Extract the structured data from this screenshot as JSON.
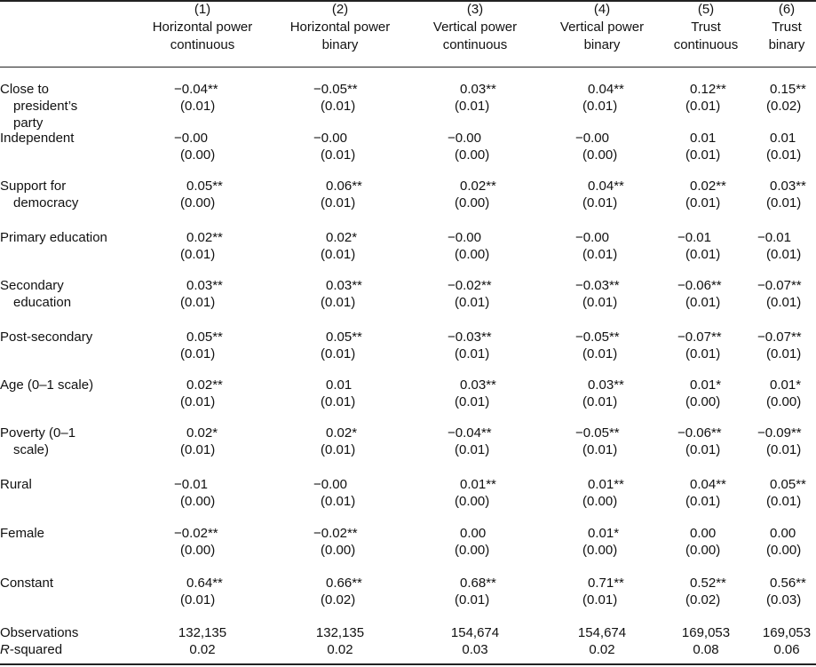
{
  "columns": [
    {
      "num": "(1)",
      "line1": "Horizontal power",
      "line2": "continuous"
    },
    {
      "num": "(2)",
      "line1": "Horizontal power",
      "line2": "binary"
    },
    {
      "num": "(3)",
      "line1": "Vertical power",
      "line2": "continuous"
    },
    {
      "num": "(4)",
      "line1": "Vertical power",
      "line2": "binary"
    },
    {
      "num": "(5)",
      "line1": "Trust",
      "line2": "continuous"
    },
    {
      "num": "(6)",
      "line1": "Trust",
      "line2": "binary"
    }
  ],
  "rows": [
    {
      "label": [
        "Close to",
        "president’s",
        "party"
      ],
      "est": [
        "−0.04**",
        "−0.05**",
        "0.03**",
        "0.04**",
        "0.12**",
        "0.15**"
      ],
      "se": [
        "(0.01)",
        "(0.01)",
        "(0.01)",
        "(0.01)",
        "(0.01)",
        "(0.02)"
      ]
    },
    {
      "label": [
        "Independent"
      ],
      "est": [
        "−0.00",
        "−0.00",
        "−0.00",
        "−0.00",
        "0.01",
        "0.01"
      ],
      "se": [
        "(0.00)",
        "(0.01)",
        "(0.00)",
        "(0.00)",
        "(0.01)",
        "(0.01)"
      ]
    },
    {
      "label": [
        "Support for",
        "democracy"
      ],
      "est": [
        "0.05**",
        "0.06**",
        "0.02**",
        "0.04**",
        "0.02**",
        "0.03**"
      ],
      "se": [
        "(0.00)",
        "(0.01)",
        "(0.00)",
        "(0.01)",
        "(0.01)",
        "(0.01)"
      ]
    },
    {
      "label": [
        "Primary education"
      ],
      "est": [
        "0.02**",
        "0.02*",
        "−0.00",
        "−0.00",
        "−0.01",
        "−0.01"
      ],
      "se": [
        "(0.01)",
        "(0.01)",
        "(0.00)",
        "(0.01)",
        "(0.01)",
        "(0.01)"
      ]
    },
    {
      "label": [
        "Secondary",
        "education"
      ],
      "est": [
        "0.03**",
        "0.03**",
        "−0.02**",
        "−0.03**",
        "−0.06**",
        "−0.07**"
      ],
      "se": [
        "(0.01)",
        "(0.01)",
        "(0.01)",
        "(0.01)",
        "(0.01)",
        "(0.01)"
      ]
    },
    {
      "label": [
        "Post-secondary"
      ],
      "est": [
        "0.05**",
        "0.05**",
        "−0.03**",
        "−0.05**",
        "−0.07**",
        "−0.07**"
      ],
      "se": [
        "(0.01)",
        "(0.01)",
        "(0.01)",
        "(0.01)",
        "(0.01)",
        "(0.01)"
      ]
    },
    {
      "label": [
        "Age (0–1 scale)"
      ],
      "est": [
        "0.02**",
        "0.01",
        "0.03**",
        "0.03**",
        "0.01*",
        "0.01*"
      ],
      "se": [
        "(0.01)",
        "(0.01)",
        "(0.01)",
        "(0.01)",
        "(0.00)",
        "(0.00)"
      ]
    },
    {
      "label": [
        "Poverty (0–1",
        "scale)"
      ],
      "est": [
        "0.02*",
        "0.02*",
        "−0.04**",
        "−0.05**",
        "−0.06**",
        "−0.09**"
      ],
      "se": [
        "(0.01)",
        "(0.01)",
        "(0.01)",
        "(0.01)",
        "(0.01)",
        "(0.01)"
      ]
    },
    {
      "label": [
        "Rural"
      ],
      "est": [
        "−0.01",
        "−0.00",
        "0.01**",
        "0.01**",
        "0.04**",
        "0.05**"
      ],
      "se": [
        "(0.00)",
        "(0.01)",
        "(0.00)",
        "(0.00)",
        "(0.01)",
        "(0.01)"
      ]
    },
    {
      "label": [
        "Female"
      ],
      "est": [
        "−0.02**",
        "−0.02**",
        "0.00",
        "0.01*",
        "0.00",
        "0.00"
      ],
      "se": [
        "(0.00)",
        "(0.00)",
        "(0.00)",
        "(0.00)",
        "(0.00)",
        "(0.00)"
      ]
    },
    {
      "label": [
        "Constant"
      ],
      "est": [
        "0.64**",
        "0.66**",
        "0.68**",
        "0.71**",
        "0.52**",
        "0.56**"
      ],
      "se": [
        "(0.01)",
        "(0.02)",
        "(0.01)",
        "(0.01)",
        "(0.02)",
        "(0.03)"
      ]
    }
  ],
  "stats": [
    {
      "label": "Observations",
      "values": [
        "132,135",
        "132,135",
        "154,674",
        "154,674",
        "169,053",
        "169,053"
      ]
    },
    {
      "label_italic": "R",
      "label": "-squared",
      "values": [
        "0.02",
        "0.02",
        "0.03",
        "0.02",
        "0.08",
        "0.06"
      ]
    }
  ]
}
